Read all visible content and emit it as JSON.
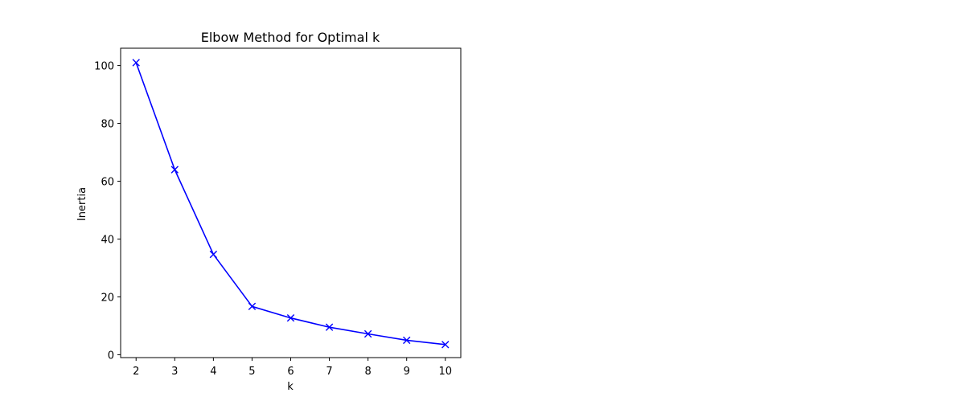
{
  "chart_data": {
    "type": "line",
    "title": "Elbow Method for Optimal k",
    "xlabel": "k",
    "ylabel": "Inertia",
    "x": [
      2,
      3,
      4,
      5,
      6,
      7,
      8,
      9,
      10
    ],
    "series": [
      {
        "name": "Inertia",
        "values": [
          101.0,
          64.0,
          34.7,
          16.7,
          12.7,
          9.5,
          7.2,
          5.0,
          3.5
        ],
        "color": "#0000ff",
        "marker": "x"
      }
    ],
    "xticks": [
      2,
      3,
      4,
      5,
      6,
      7,
      8,
      9,
      10
    ],
    "yticks": [
      0,
      20,
      40,
      60,
      80,
      100
    ],
    "xlim": [
      1.6,
      10.4
    ],
    "ylim": [
      -1.0,
      106.0
    ],
    "grid": false,
    "legend": "none"
  }
}
